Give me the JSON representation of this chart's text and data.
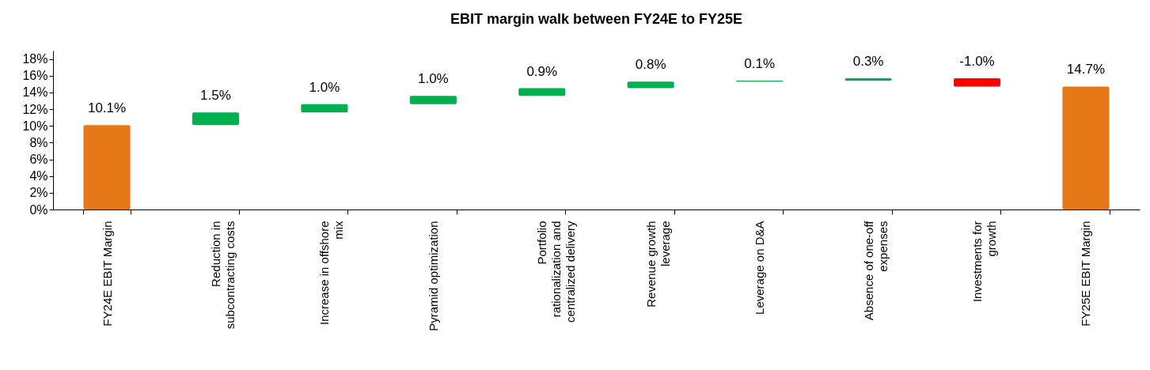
{
  "chart_data": {
    "type": "bar",
    "title": "EBIT margin walk between FY24E to FY25E",
    "categories": [
      "FY24E EBIT Margin",
      "Reduction in subcontracting costs",
      "Increase in offshore mix",
      "Pyramid optimization",
      "Portfolio rationalization and centralized delivery",
      "Revenue growth leverage",
      "Leverage on D&A",
      "Absence of one-off expenses",
      "Investments for growth",
      "FY25E EBIT Margin"
    ],
    "values": [
      10.1,
      1.5,
      1.0,
      1.0,
      0.9,
      0.8,
      0.1,
      0.3,
      -1.0,
      14.7
    ],
    "base": [
      0,
      10.1,
      11.6,
      12.6,
      13.6,
      14.5,
      15.3,
      15.4,
      15.7,
      0
    ],
    "colors": [
      "#e67817",
      "#00b050",
      "#00b050",
      "#00b050",
      "#00b050",
      "#00b050",
      "#00b050",
      "#00b050",
      "#ff0000",
      "#e67817"
    ],
    "value_labels": [
      "10.1%",
      "1.5%",
      "1.0%",
      "1.0%",
      "0.9%",
      "0.8%",
      "0.1%",
      "0.3%",
      "-1.0%",
      "14.7%"
    ],
    "ylim": [
      0,
      19
    ],
    "yticks": [
      {
        "value": 0,
        "label": "0%"
      },
      {
        "value": 2,
        "label": "2%"
      },
      {
        "value": 4,
        "label": "4%"
      },
      {
        "value": 6,
        "label": "6%"
      },
      {
        "value": 8,
        "label": "8%"
      },
      {
        "value": 10,
        "label": "10%"
      },
      {
        "value": 12,
        "label": "12%"
      },
      {
        "value": 14,
        "label": "14%"
      },
      {
        "value": 16,
        "label": "16%"
      },
      {
        "value": 18,
        "label": "18%"
      }
    ],
    "grid": false
  }
}
